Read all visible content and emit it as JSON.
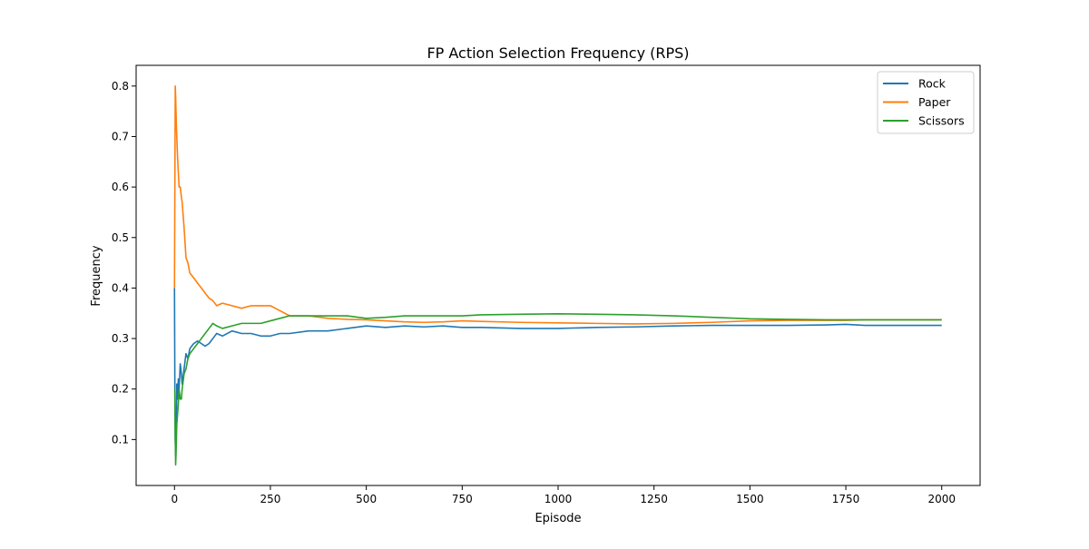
{
  "chart_data": {
    "type": "line",
    "title": "FP Action Selection Frequency (RPS)",
    "xlabel": "Episode",
    "ylabel": "Frequency",
    "xlim": [
      -100,
      2100
    ],
    "ylim": [
      0.009,
      0.841
    ],
    "xticks": [
      0,
      250,
      500,
      750,
      1000,
      1250,
      1500,
      1750,
      2000
    ],
    "xtick_labels": [
      "0",
      "250",
      "500",
      "750",
      "1000",
      "1250",
      "1500",
      "1750",
      "2000"
    ],
    "yticks": [
      0.1,
      0.2,
      0.3,
      0.4,
      0.5,
      0.6,
      0.7,
      0.8
    ],
    "ytick_labels": [
      "0.1",
      "0.2",
      "0.3",
      "0.4",
      "0.5",
      "0.6",
      "0.7",
      "0.8"
    ],
    "grid": false,
    "legend": {
      "position": "top-right"
    },
    "series": [
      {
        "name": "Rock",
        "color": "#1f77b4",
        "x": [
          0,
          1,
          2,
          3,
          4,
          5,
          6,
          8,
          10,
          12,
          15,
          18,
          20,
          25,
          30,
          35,
          40,
          50,
          60,
          70,
          80,
          90,
          100,
          110,
          125,
          150,
          175,
          200,
          225,
          250,
          275,
          300,
          350,
          400,
          450,
          500,
          550,
          600,
          650,
          700,
          750,
          800,
          900,
          1000,
          1100,
          1200,
          1300,
          1400,
          1500,
          1600,
          1700,
          1750,
          1800,
          1900,
          2000
        ],
        "y": [
          0.4,
          0.2,
          0.1,
          0.07,
          0.11,
          0.13,
          0.21,
          0.18,
          0.22,
          0.2,
          0.25,
          0.23,
          0.21,
          0.24,
          0.27,
          0.26,
          0.28,
          0.29,
          0.295,
          0.29,
          0.285,
          0.29,
          0.3,
          0.31,
          0.305,
          0.315,
          0.31,
          0.31,
          0.305,
          0.305,
          0.31,
          0.31,
          0.315,
          0.315,
          0.32,
          0.325,
          0.322,
          0.325,
          0.323,
          0.325,
          0.322,
          0.322,
          0.32,
          0.32,
          0.322,
          0.323,
          0.325,
          0.326,
          0.326,
          0.326,
          0.327,
          0.328,
          0.326,
          0.326,
          0.326
        ]
      },
      {
        "name": "Paper",
        "color": "#ff7f0e",
        "x": [
          0,
          1,
          2,
          3,
          4,
          5,
          6,
          8,
          10,
          12,
          15,
          18,
          20,
          25,
          30,
          35,
          40,
          50,
          60,
          70,
          80,
          90,
          100,
          110,
          125,
          150,
          175,
          200,
          225,
          250,
          275,
          300,
          350,
          400,
          450,
          500,
          550,
          600,
          650,
          700,
          750,
          800,
          900,
          1000,
          1100,
          1200,
          1300,
          1400,
          1500,
          1600,
          1700,
          1750,
          1800,
          1900,
          2000
        ],
        "y": [
          0.4,
          0.6,
          0.8,
          0.78,
          0.75,
          0.72,
          0.7,
          0.66,
          0.63,
          0.6,
          0.6,
          0.58,
          0.57,
          0.52,
          0.46,
          0.45,
          0.43,
          0.42,
          0.41,
          0.4,
          0.39,
          0.38,
          0.375,
          0.365,
          0.37,
          0.365,
          0.36,
          0.365,
          0.365,
          0.365,
          0.355,
          0.345,
          0.345,
          0.34,
          0.338,
          0.337,
          0.335,
          0.333,
          0.332,
          0.333,
          0.335,
          0.334,
          0.332,
          0.331,
          0.33,
          0.329,
          0.33,
          0.332,
          0.335,
          0.336,
          0.336,
          0.336,
          0.337,
          0.337,
          0.337
        ]
      },
      {
        "name": "Scissors",
        "color": "#2ca02c",
        "x": [
          0,
          1,
          2,
          3,
          4,
          5,
          6,
          8,
          10,
          12,
          15,
          18,
          20,
          25,
          30,
          35,
          40,
          50,
          60,
          70,
          80,
          90,
          100,
          110,
          125,
          150,
          175,
          200,
          225,
          250,
          275,
          300,
          350,
          400,
          450,
          500,
          550,
          600,
          650,
          700,
          750,
          800,
          900,
          1000,
          1100,
          1200,
          1300,
          1400,
          1500,
          1600,
          1700,
          1750,
          1800,
          1900,
          2000
        ],
        "y": [
          0.2,
          0.2,
          0.1,
          0.05,
          0.07,
          0.1,
          0.13,
          0.15,
          0.17,
          0.2,
          0.18,
          0.18,
          0.2,
          0.23,
          0.24,
          0.26,
          0.27,
          0.28,
          0.29,
          0.3,
          0.31,
          0.32,
          0.33,
          0.325,
          0.32,
          0.325,
          0.33,
          0.33,
          0.33,
          0.335,
          0.34,
          0.345,
          0.345,
          0.345,
          0.345,
          0.34,
          0.342,
          0.345,
          0.345,
          0.345,
          0.345,
          0.347,
          0.348,
          0.349,
          0.348,
          0.347,
          0.345,
          0.342,
          0.339,
          0.338,
          0.337,
          0.337,
          0.337,
          0.337,
          0.337
        ]
      }
    ]
  }
}
